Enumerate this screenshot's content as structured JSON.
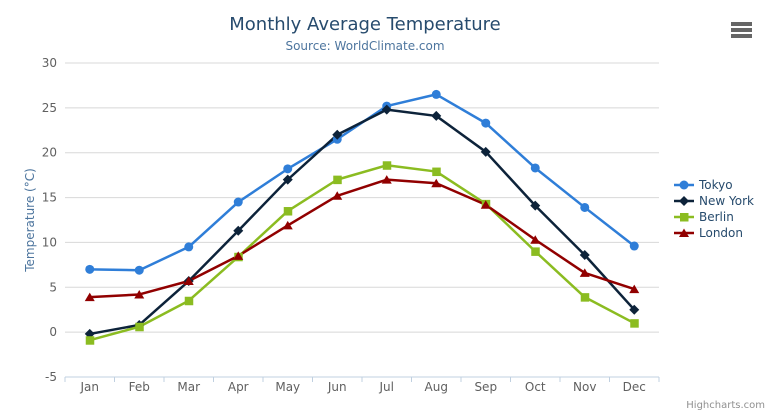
{
  "chart_data": {
    "type": "line",
    "title": "Monthly Average Temperature",
    "subtitle": "Source: WorldClimate.com",
    "xlabel": "",
    "ylabel": "Temperature (°C)",
    "ylim": [
      -5,
      30
    ],
    "ytick_interval": 5,
    "grid": true,
    "legend_position": "right",
    "categories": [
      "Jan",
      "Feb",
      "Mar",
      "Apr",
      "May",
      "Jun",
      "Jul",
      "Aug",
      "Sep",
      "Oct",
      "Nov",
      "Dec"
    ],
    "series": [
      {
        "name": "Tokyo",
        "color": "#2f7ed8",
        "marker": "circle",
        "values": [
          7.0,
          6.9,
          9.5,
          14.5,
          18.2,
          21.5,
          25.2,
          26.5,
          23.3,
          18.3,
          13.9,
          9.6
        ]
      },
      {
        "name": "New York",
        "color": "#0d233a",
        "marker": "diamond",
        "values": [
          -0.2,
          0.8,
          5.7,
          11.3,
          17.0,
          22.0,
          24.8,
          24.1,
          20.1,
          14.1,
          8.6,
          2.5
        ]
      },
      {
        "name": "Berlin",
        "color": "#8bbc21",
        "marker": "square",
        "values": [
          -0.9,
          0.6,
          3.5,
          8.4,
          13.5,
          17.0,
          18.6,
          17.9,
          14.3,
          9.0,
          3.9,
          1.0
        ]
      },
      {
        "name": "London",
        "color": "#910000",
        "marker": "triangle",
        "values": [
          3.9,
          4.2,
          5.7,
          8.5,
          11.9,
          15.2,
          17.0,
          16.6,
          14.2,
          10.3,
          6.6,
          4.8
        ]
      }
    ]
  },
  "credits": {
    "label": "Highcharts.com"
  },
  "colors": {
    "background": "#ffffff",
    "title": "#274b6d",
    "subtitle": "#4d759e",
    "axis_title": "#4d759e",
    "axis_label": "#606060",
    "grid_line": "#d8d8d8",
    "axis_line": "#c0d0e0",
    "legend_text": "#274b6d",
    "credits_text": "#909090",
    "menu_icon": "#666666"
  }
}
